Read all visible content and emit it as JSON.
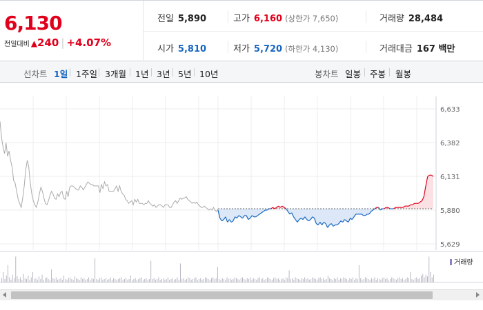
{
  "quote": {
    "price": "6,130",
    "change_label": "전일대비",
    "change_arrow": "▲",
    "change_value": "240",
    "change_percent": "+4.07%",
    "up_color": "#e0001c",
    "down_color": "#1665c0"
  },
  "stats": {
    "prev_close": {
      "label": "전일",
      "value": "5,890"
    },
    "open": {
      "label": "시가",
      "value": "5,810"
    },
    "high": {
      "label": "고가",
      "value": "6,160",
      "sub": "(상한가 7,650)"
    },
    "low": {
      "label": "저가",
      "value": "5,720",
      "sub": "(하한가 4,130)"
    },
    "volume": {
      "label": "거래량",
      "value": "28,484"
    },
    "amount": {
      "label": "거래대금",
      "value": "167 백만"
    }
  },
  "tabs": {
    "line_title": "선차트",
    "line_items": [
      "1일",
      "1주일",
      "3개월",
      "1년",
      "3년",
      "5년",
      "10년"
    ],
    "line_active": "1일",
    "candle_title": "봉차트",
    "candle_items": [
      "일봉",
      "주봉",
      "월봉"
    ]
  },
  "chart_data": {
    "type": "line",
    "y_ticks": [
      6633,
      6382,
      6131,
      5880,
      5629
    ],
    "y_tick_labels": [
      "6,633",
      "6,382",
      "6,131",
      "5,880",
      "5,629"
    ],
    "ylim": [
      5629,
      6633
    ],
    "reference_price": 5890,
    "grid": true,
    "series": [
      {
        "values": [
          6540,
          6420,
          6350,
          6300,
          6380,
          6280,
          6320,
          6250,
          6200,
          6100,
          6080,
          6020,
          5960,
          5930,
          5900,
          5970,
          6060,
          6180,
          6250,
          6200,
          6080,
          6000,
          5950,
          5920,
          5900,
          5940,
          6000,
          6050,
          6020,
          5970,
          5930,
          5920,
          5950,
          5990,
          6020,
          6000,
          5970,
          5960,
          6000,
          5980,
          6010,
          6020,
          5970,
          5960,
          6020,
          5980,
          6050,
          6060,
          6060,
          6050,
          6040,
          6030,
          6030,
          6060,
          6050,
          6030,
          6050,
          6070,
          6090,
          6080,
          6070,
          6070,
          6060,
          6060,
          6060,
          6060,
          6010,
          6070,
          6040,
          6090,
          6060,
          6070,
          6020,
          6020,
          6020,
          6020,
          6040,
          6060,
          6020,
          6060,
          6020,
          6000,
          5990,
          5960,
          5950,
          5930,
          5940,
          5950,
          5920,
          5960,
          5940,
          5960,
          5930,
          5930,
          5930,
          5920,
          5930,
          5930,
          5950,
          5930,
          5920,
          5910,
          5920,
          5900,
          5910,
          5920,
          5920,
          5910,
          5900,
          5920,
          5920,
          5920,
          5900,
          5900,
          5920,
          5940,
          5950,
          5930,
          5950,
          5970,
          5960,
          5970,
          5970,
          5980,
          5960,
          5950,
          5940,
          5930,
          5940,
          5930,
          5940,
          5920,
          5910,
          5900,
          5900,
          5910,
          5900,
          5890,
          5880,
          5890,
          5880,
          5900,
          5880,
          5870,
          5890
        ],
        "color": "#aaaaaa"
      },
      {
        "values": [
          5880,
          5820,
          5800,
          5810,
          5830,
          5790,
          5810,
          5790,
          5800,
          5830,
          5820,
          5840,
          5830,
          5820,
          5840,
          5840,
          5810,
          5820,
          5840,
          5830,
          5830,
          5840,
          5850,
          5860,
          5870,
          5880,
          5880,
          5890,
          5890,
          5900,
          5890,
          5900,
          5910,
          5900,
          5910,
          5900,
          5890,
          5870,
          5850,
          5860,
          5830,
          5810,
          5790,
          5810,
          5820,
          5810,
          5830,
          5810,
          5800,
          5810,
          5830,
          5820,
          5780,
          5770,
          5790,
          5770,
          5790,
          5780,
          5750,
          5770,
          5780,
          5760,
          5770,
          5770,
          5780,
          5800,
          5790,
          5810,
          5800,
          5790,
          5820,
          5810,
          5830,
          5850,
          5850,
          5850,
          5850,
          5840,
          5840,
          5850,
          5850,
          5870,
          5880,
          5890,
          5900,
          5900,
          5880,
          5890,
          5890,
          5900,
          5900,
          5890,
          5890,
          5890,
          5900,
          5900,
          5900,
          5900,
          5900,
          5910,
          5910,
          5910,
          5920,
          5920,
          5930,
          5930,
          5930,
          5940,
          5950,
          5980,
          6060,
          6130,
          6140,
          6140,
          6130
        ],
        "color": "#1665c0"
      }
    ],
    "volume_label": "거래량",
    "volume_color": "#8a80c8",
    "volume": [
      5,
      12,
      4,
      8,
      20,
      6,
      3,
      9,
      5,
      30,
      7,
      4,
      6,
      3,
      10,
      5,
      4,
      8,
      3,
      6,
      12,
      4,
      5,
      3,
      7,
      4,
      9,
      3,
      5,
      6,
      4,
      3,
      15,
      5,
      4,
      6,
      3,
      4,
      5,
      3,
      8,
      4,
      3,
      5,
      6,
      4,
      3,
      7,
      5,
      4,
      3,
      6,
      4,
      5,
      3,
      4,
      6,
      3,
      5,
      4,
      28,
      4,
      3,
      5,
      6,
      3,
      4,
      5,
      3,
      4,
      6,
      3,
      5,
      4,
      3,
      4,
      5,
      6,
      3,
      4,
      5,
      3,
      4,
      8,
      3,
      4,
      5,
      3,
      4,
      5,
      6,
      3,
      4,
      5,
      3,
      4,
      25,
      4,
      5,
      3,
      4,
      6,
      3,
      4,
      5,
      3,
      4,
      6,
      3,
      4,
      5,
      3,
      4,
      6,
      3,
      22,
      4,
      5,
      3,
      4,
      6,
      5,
      3,
      4,
      5,
      6,
      3,
      4,
      5,
      3,
      4,
      6,
      5,
      4,
      3,
      5,
      6,
      4,
      5,
      18,
      4,
      3,
      5,
      4,
      3,
      6,
      4,
      5,
      3,
      4,
      6,
      5,
      4,
      3,
      5,
      6,
      4,
      3,
      5,
      4,
      6,
      3,
      5,
      4,
      3,
      5,
      6,
      4,
      5,
      3,
      4,
      6,
      5,
      4,
      3,
      5,
      6,
      4,
      5,
      3,
      4,
      5,
      3,
      6,
      5,
      14,
      4,
      5,
      3,
      6,
      5,
      4,
      3,
      5,
      4,
      6,
      4,
      5,
      3,
      4,
      6,
      5,
      4,
      3,
      5,
      6,
      4,
      5,
      3,
      4,
      8,
      5,
      4,
      3,
      5,
      4,
      6,
      3,
      5,
      4,
      6,
      5,
      4,
      3,
      5,
      4,
      6,
      3,
      5,
      4,
      20,
      5,
      3,
      4,
      6,
      5,
      4,
      3,
      5,
      4,
      6,
      3,
      5,
      4,
      3,
      5,
      6,
      4,
      5,
      3,
      4,
      6,
      5,
      4,
      3,
      5,
      6,
      4,
      5,
      3,
      4,
      6,
      5,
      12,
      4,
      3,
      5,
      6,
      4,
      5,
      8,
      10,
      6,
      9,
      7,
      30,
      12,
      6,
      9
    ]
  }
}
